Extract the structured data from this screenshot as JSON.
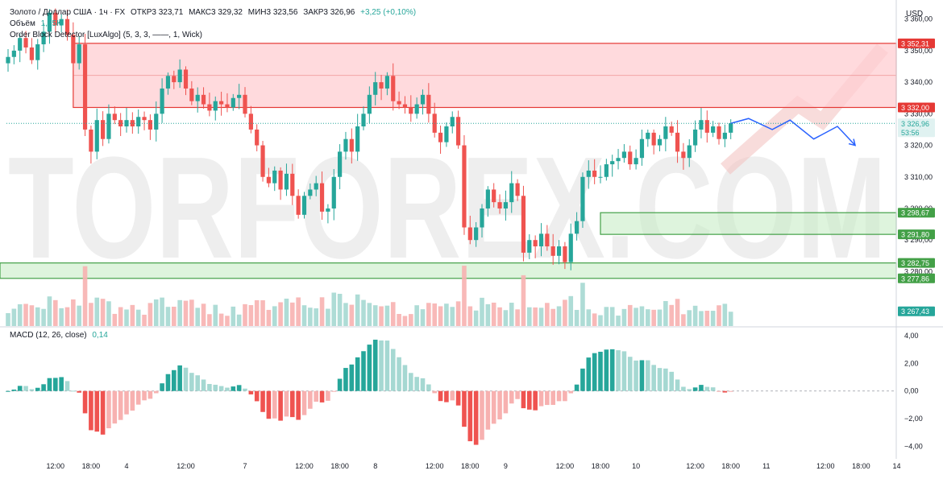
{
  "header": {
    "symbol_line": "Золото / Доллар США · 1ч · FX",
    "open": "ОТКР3 323,71",
    "high": "МАКС3 329,32",
    "low": "МИН3 323,56",
    "close": "ЗАКР3 326,96",
    "change": "+3,25 (+0,10%)",
    "volume_label": "Объём",
    "volume_value": "1,15K",
    "indicator": "Order Block Detector [LuxAlgo] (5, 3, 3, ——, 1, Wick)",
    "currency": "USD"
  },
  "macd_legend": {
    "label": "MACD (12, 26, close)",
    "value": "0,14"
  },
  "watermark": "TORFOREX.COM",
  "colors": {
    "up": "#26a69a",
    "down": "#ef5350",
    "up_light": "#a5d8d2",
    "down_light": "#f7b1b0",
    "resistance": "#f5827f",
    "support": "#6dd26a",
    "forecast": "#2962ff"
  },
  "chart_data": {
    "type": "candlestick",
    "price_axis": {
      "range": [
        3262,
        3364
      ],
      "ticks": [
        "3 360,00",
        "3 350,00",
        "3 340,00",
        "3 330,00",
        "3 320,00",
        "3 310,00",
        "3 300,00",
        "3 290,00",
        "3 280,00"
      ]
    },
    "x_labels": [
      {
        "i": 8,
        "label": "12:00"
      },
      {
        "i": 14,
        "label": "18:00"
      },
      {
        "i": 20,
        "label": "4"
      },
      {
        "i": 30,
        "label": "12:00"
      },
      {
        "i": 40,
        "label": "7"
      },
      {
        "i": 50,
        "label": "12:00"
      },
      {
        "i": 56,
        "label": "18:00"
      },
      {
        "i": 62,
        "label": "8"
      },
      {
        "i": 72,
        "label": "12:00"
      },
      {
        "i": 78,
        "label": "18:00"
      },
      {
        "i": 84,
        "label": "9"
      },
      {
        "i": 94,
        "label": "12:00"
      },
      {
        "i": 100,
        "label": "18:00"
      },
      {
        "i": 106,
        "label": "10"
      },
      {
        "i": 116,
        "label": "12:00"
      },
      {
        "i": 122,
        "label": "18:00"
      },
      {
        "i": 128,
        "label": "11"
      },
      {
        "i": 138,
        "label": "12:00"
      },
      {
        "i": 144,
        "label": "18:00"
      },
      {
        "i": 150,
        "label": "14"
      }
    ],
    "closes": [
      3348,
      3350,
      3354,
      3351,
      3347,
      3352,
      3356,
      3362,
      3358,
      3360,
      3355,
      3346,
      3352,
      3325,
      3318,
      3328,
      3322,
      3330,
      3328,
      3326,
      3328,
      3326,
      3329,
      3328,
      3325,
      3330,
      3338,
      3342,
      3340,
      3344,
      3338,
      3334,
      3336,
      3333,
      3331,
      3334,
      3333,
      3332,
      3335,
      3336,
      3330,
      3325,
      3320,
      3310,
      3308,
      3312,
      3306,
      3311,
      3304,
      3298,
      3304,
      3306,
      3308,
      3299,
      3300,
      3310,
      3318,
      3322,
      3318,
      3326,
      3330,
      3336,
      3340,
      3338,
      3342,
      3334,
      3333,
      3332,
      3330,
      3333,
      3336,
      3330,
      3324,
      3321,
      3326,
      3329,
      3320,
      3294,
      3290,
      3294,
      3300,
      3306,
      3302,
      3300,
      3302,
      3308,
      3304,
      3286,
      3290,
      3288,
      3292,
      3288,
      3285,
      3288,
      3283,
      3292,
      3296,
      3310,
      3312,
      3310,
      3310,
      3314,
      3315,
      3316,
      3318,
      3314,
      3316,
      3322,
      3324,
      3320,
      3322,
      3326,
      3324,
      3318,
      3316,
      3320,
      3325,
      3328,
      3324,
      3326,
      3322,
      3324,
      3327
    ],
    "levels": [
      {
        "label": "3 352,31",
        "value": 3352.31,
        "kind": "resistance"
      },
      {
        "label": "3 332,00",
        "value": 3332.0,
        "kind": "resistance"
      },
      {
        "label": "3 326,96",
        "value": 3326.96,
        "kind": "last"
      },
      {
        "label": "53:56",
        "kind": "timer"
      },
      {
        "label": "3 298,67",
        "value": 3298.67,
        "kind": "support"
      },
      {
        "label": "3 291,80",
        "value": 3291.8,
        "kind": "support"
      },
      {
        "label": "3 282,75",
        "value": 3282.75,
        "kind": "support"
      },
      {
        "label": "3 277,86",
        "value": 3277.86,
        "kind": "support"
      },
      {
        "label": "3 267,43",
        "value": 3267.43,
        "kind": "volume"
      }
    ],
    "zones": [
      {
        "from": 3332.0,
        "to": 3352.31,
        "start_i": 11,
        "kind": "resistance"
      },
      {
        "from": 3291.8,
        "to": 3298.67,
        "start_i": 100,
        "kind": "support"
      },
      {
        "from": 3277.86,
        "to": 3282.75,
        "start_i": 0,
        "kind": "support"
      }
    ],
    "forecast_path": [
      [
        122,
        3326.96
      ],
      [
        125,
        3328.5
      ],
      [
        129,
        3325
      ],
      [
        132,
        3328
      ],
      [
        136,
        3322
      ],
      [
        140,
        3326
      ],
      [
        143,
        3320
      ]
    ],
    "macd": {
      "range": [
        -4.8,
        4.3
      ],
      "ticks": [
        "4,00",
        "2,00",
        "0,00",
        "−2,00",
        "−4,00"
      ]
    }
  }
}
